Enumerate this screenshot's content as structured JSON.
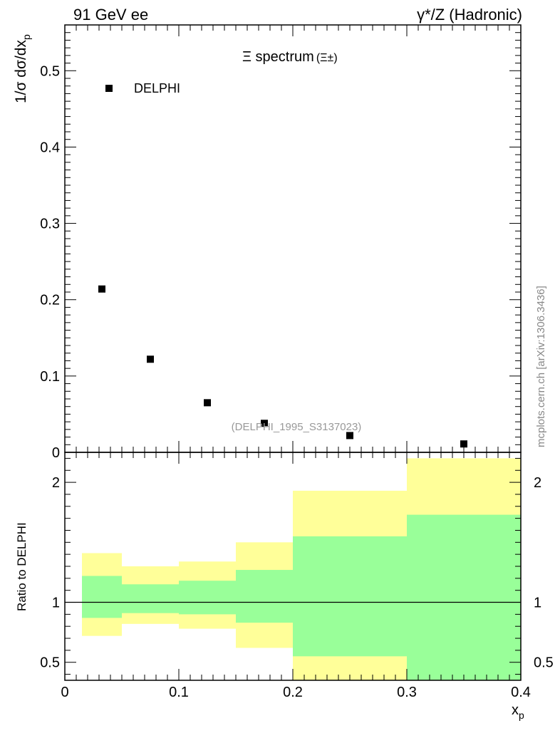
{
  "header": {
    "left": "91 GeV ee",
    "right": "γ*/Z (Hadronic)"
  },
  "side_label": "mcplots.cern.ch [arXiv:1306.3436]",
  "colors": {
    "band_outer": "#ffff99",
    "band_inner": "#99ff99",
    "marker": "#000000",
    "watermark": "#999999"
  },
  "chart_data": [
    {
      "type": "scatter",
      "title": "Ξ spectrum",
      "title_suffix": "(Ξ±)",
      "ylabel_main": "1/σ dσ/dx",
      "ylabel_sub": "p",
      "xlim": [
        0,
        0.4
      ],
      "ylim": [
        0,
        0.56
      ],
      "yticks": [
        {
          "value": 0,
          "label": "0"
        },
        {
          "value": 0.1,
          "label": "0.1"
        },
        {
          "value": 0.2,
          "label": "0.2"
        },
        {
          "value": 0.3,
          "label": "0.3"
        },
        {
          "value": 0.4,
          "label": "0.4"
        },
        {
          "value": 0.5,
          "label": "0.5"
        }
      ],
      "legend": [
        {
          "name": "DELPHI",
          "marker": "square",
          "placement": "top-left"
        }
      ],
      "annotation": "(DELPHI_1995_S3137023)",
      "series": [
        {
          "name": "DELPHI",
          "points": [
            {
              "x": 0.0325,
              "y": 0.214
            },
            {
              "x": 0.075,
              "y": 0.122
            },
            {
              "x": 0.125,
              "y": 0.065
            },
            {
              "x": 0.175,
              "y": 0.038
            },
            {
              "x": 0.25,
              "y": 0.022
            },
            {
              "x": 0.35,
              "y": 0.011
            }
          ]
        }
      ]
    },
    {
      "type": "area",
      "ylabel": "Ratio to DELPHI",
      "xlabel_main": "x",
      "xlabel_sub": "p",
      "xlim": [
        0,
        0.4
      ],
      "ylim": [
        0.35,
        2.25
      ],
      "reference_line": 1,
      "yticks_left": [
        {
          "value": 0.5,
          "label": "0.5"
        },
        {
          "value": 1,
          "label": "1"
        },
        {
          "value": 2,
          "label": "2"
        }
      ],
      "yticks_right": [
        {
          "value": 0.5,
          "label": "0.5"
        },
        {
          "value": 1,
          "label": "1"
        },
        {
          "value": 2,
          "label": "2"
        }
      ],
      "xticks": [
        {
          "value": 0,
          "label": "0"
        },
        {
          "value": 0.1,
          "label": "0.1"
        },
        {
          "value": 0.2,
          "label": "0.2"
        },
        {
          "value": 0.3,
          "label": "0.3"
        },
        {
          "value": 0.4,
          "label": "0.4"
        }
      ],
      "bins": [
        {
          "x1": 0.015,
          "x2": 0.05,
          "outer": [
            0.72,
            1.41
          ],
          "inner": [
            0.87,
            1.22
          ]
        },
        {
          "x1": 0.05,
          "x2": 0.1,
          "outer": [
            0.82,
            1.3
          ],
          "inner": [
            0.91,
            1.15
          ]
        },
        {
          "x1": 0.1,
          "x2": 0.15,
          "outer": [
            0.78,
            1.34
          ],
          "inner": [
            0.9,
            1.18
          ]
        },
        {
          "x1": 0.15,
          "x2": 0.2,
          "outer": [
            0.62,
            1.5
          ],
          "inner": [
            0.83,
            1.27
          ]
        },
        {
          "x1": 0.2,
          "x2": 0.3,
          "outer": [
            0.35,
            1.93
          ],
          "inner": [
            0.55,
            1.55
          ]
        },
        {
          "x1": 0.3,
          "x2": 0.4,
          "outer": [
            0.35,
            2.2
          ],
          "inner": [
            0.35,
            1.73
          ]
        }
      ]
    }
  ]
}
